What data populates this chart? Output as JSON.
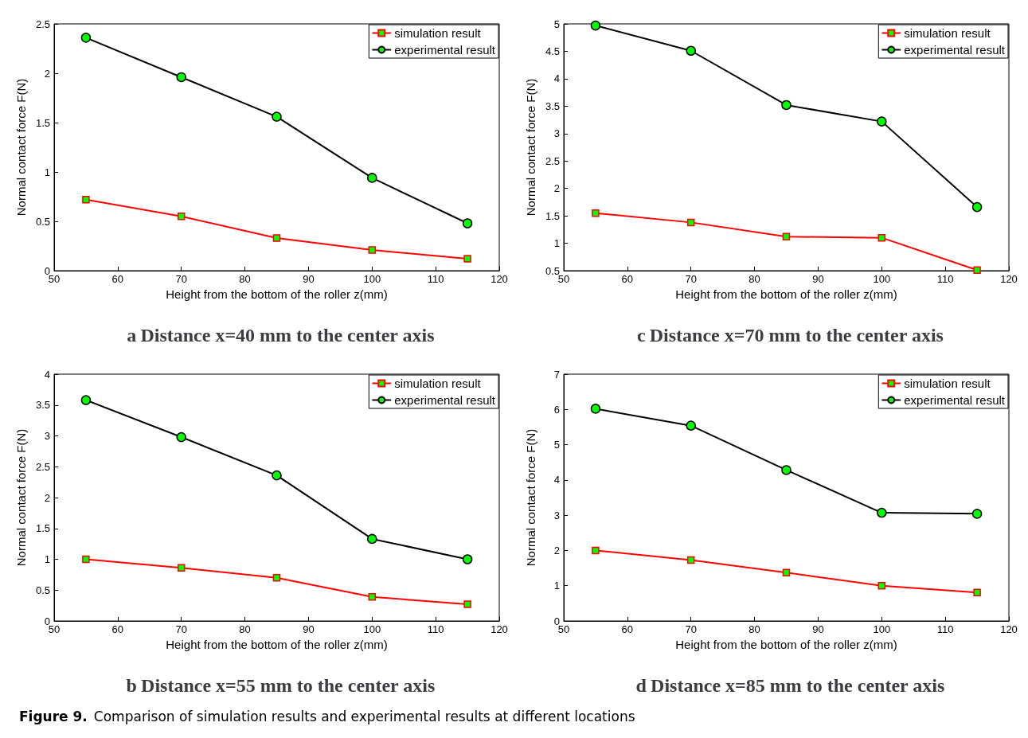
{
  "chart_data": [
    {
      "type": "line",
      "title": "a Distance x=40 mm to the center axis",
      "xlabel": "Height from the bottom of the roller z(mm)",
      "ylabel": "Normal contact force F(N)",
      "x": [
        55,
        70,
        85,
        100,
        115
      ],
      "xlim": [
        50,
        120
      ],
      "xticks": [
        50,
        60,
        70,
        80,
        90,
        100,
        110,
        120
      ],
      "ylim": [
        0,
        2.5
      ],
      "yticks": [
        0,
        0.5,
        1,
        1.5,
        2,
        2.5
      ],
      "grid": false,
      "legend": "top right",
      "line_style": "solid",
      "series": [
        {
          "name": "simulation result",
          "color": "#ff0000",
          "marker": "square",
          "values": [
            0.72,
            0.55,
            0.33,
            0.21,
            0.12
          ]
        },
        {
          "name": "experimental result",
          "color": "#000000",
          "marker": "circle",
          "values": [
            2.36,
            1.96,
            1.56,
            0.94,
            0.48
          ]
        }
      ]
    },
    {
      "type": "line",
      "title": "c Distance x=70 mm to the center axis",
      "xlabel": "Height from the bottom of the roller z(mm)",
      "ylabel": "Normal contact force F(N)",
      "x": [
        55,
        70,
        85,
        100,
        115
      ],
      "xlim": [
        50,
        120
      ],
      "xticks": [
        50,
        60,
        70,
        80,
        90,
        100,
        110,
        120
      ],
      "ylim": [
        0.5,
        5
      ],
      "yticks": [
        0.5,
        1,
        1.5,
        2,
        2.5,
        3,
        3.5,
        4,
        4.5,
        5
      ],
      "grid": false,
      "legend": "top right",
      "line_style": "solid",
      "series": [
        {
          "name": "simulation result",
          "color": "#ff0000",
          "marker": "square",
          "values": [
            1.55,
            1.38,
            1.12,
            1.1,
            0.51
          ]
        },
        {
          "name": "experimental result",
          "color": "#000000",
          "marker": "circle",
          "values": [
            4.97,
            4.51,
            3.52,
            3.22,
            1.66
          ]
        }
      ]
    },
    {
      "type": "line",
      "title": "b Distance x=55 mm to the center axis",
      "xlabel": "Height from the bottom of the roller z(mm)",
      "ylabel": "Normal contact force F(N)",
      "x": [
        55,
        70,
        85,
        100,
        115
      ],
      "xlim": [
        50,
        120
      ],
      "xticks": [
        50,
        60,
        70,
        80,
        90,
        100,
        110,
        120
      ],
      "ylim": [
        0,
        4
      ],
      "yticks": [
        0,
        0.5,
        1,
        1.5,
        2,
        2.5,
        3,
        3.5,
        4
      ],
      "grid": false,
      "legend": "top right",
      "line_style": "solid",
      "series": [
        {
          "name": "simulation result",
          "color": "#ff0000",
          "marker": "square",
          "values": [
            1.0,
            0.86,
            0.7,
            0.39,
            0.27
          ]
        },
        {
          "name": "experimental result",
          "color": "#000000",
          "marker": "circle",
          "values": [
            3.58,
            2.98,
            2.36,
            1.33,
            1.0
          ]
        }
      ]
    },
    {
      "type": "line",
      "title": "d Distance x=85 mm to the center axis",
      "xlabel": "Height from the bottom of the roller z(mm)",
      "ylabel": "Normal contact force F(N)",
      "x": [
        55,
        70,
        85,
        100,
        115
      ],
      "xlim": [
        50,
        120
      ],
      "xticks": [
        50,
        60,
        70,
        80,
        90,
        100,
        110,
        120
      ],
      "ylim": [
        0,
        7
      ],
      "yticks": [
        0,
        1,
        2,
        3,
        4,
        5,
        6,
        7
      ],
      "grid": false,
      "legend": "top right",
      "line_style": "solid",
      "series": [
        {
          "name": "simulation result",
          "color": "#ff0000",
          "marker": "square",
          "values": [
            2.0,
            1.73,
            1.37,
            1.0,
            0.81
          ]
        },
        {
          "name": "experimental result",
          "color": "#000000",
          "marker": "circle",
          "values": [
            6.02,
            5.54,
            4.28,
            3.07,
            3.04
          ]
        }
      ]
    },
    {
      "type": "other",
      "annotations": [
        "Figure 9.",
        "Comparison of simulation results and experimental results at different locations"
      ]
    }
  ]
}
